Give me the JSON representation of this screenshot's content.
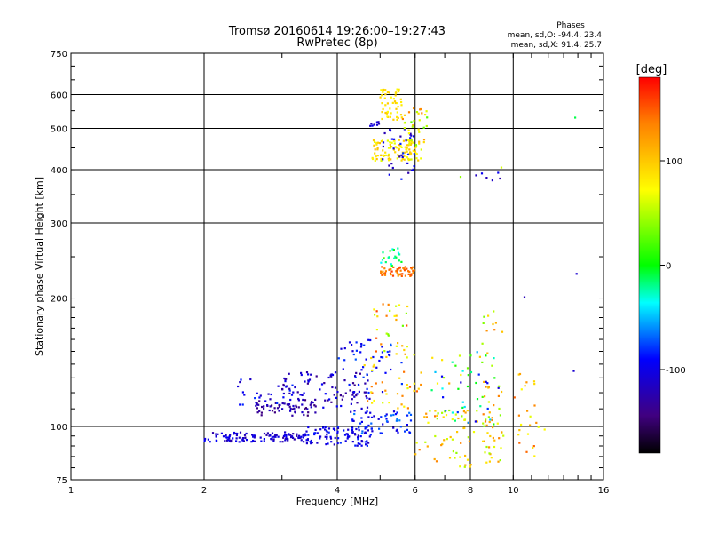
{
  "chart_data": {
    "type": "scatter",
    "title": "Tromsø 20160614 19:26:00–19:27:43",
    "subtitle": "RwPretec (8p)",
    "xlabel": "Frequency [MHz]",
    "ylabel": "Stationary phase Virtual Height [km]",
    "x_scale": "log2",
    "y_scale": "log",
    "xlim": [
      1,
      16
    ],
    "ylim": [
      75,
      750
    ],
    "x_ticks": [
      1,
      2,
      4,
      6,
      8,
      10,
      16
    ],
    "y_ticks": [
      75,
      100,
      200,
      300,
      400,
      500,
      600,
      750
    ],
    "grid": true,
    "stats": {
      "heading": "Phases",
      "o_line": "mean, sd,O: -94.4, 23.4",
      "x_line": "mean, sd,X:  91.4, 25.7"
    },
    "colorbar": {
      "label": "[deg]",
      "range": [
        -180,
        180
      ],
      "ticks": [
        100,
        0,
        -100
      ],
      "tick_labels": [
        "100",
        "0",
        "-100"
      ]
    },
    "clusters": [
      {
        "x_range": [
          2.0,
          3.4
        ],
        "y_range": [
          92,
          97
        ],
        "phase_range": [
          -130,
          -90
        ],
        "count": 120
      },
      {
        "x_range": [
          3.4,
          4.8
        ],
        "y_range": [
          90,
          100
        ],
        "phase_range": [
          -120,
          -80
        ],
        "count": 90
      },
      {
        "x_range": [
          4.2,
          6.0
        ],
        "y_range": [
          96,
          110
        ],
        "phase_range": [
          -110,
          -60
        ],
        "count": 60
      },
      {
        "x_range": [
          2.6,
          3.6
        ],
        "y_range": [
          106,
          116
        ],
        "phase_range": [
          -150,
          -110
        ],
        "count": 60
      },
      {
        "x_range": [
          3.0,
          4.8
        ],
        "y_range": [
          110,
          135
        ],
        "phase_range": [
          -140,
          -90
        ],
        "count": 90
      },
      {
        "x_range": [
          2.3,
          3.2
        ],
        "y_range": [
          112,
          130
        ],
        "phase_range": [
          -120,
          -80
        ],
        "count": 25
      },
      {
        "x_range": [
          4.0,
          5.6
        ],
        "y_range": [
          120,
          160
        ],
        "phase_range": [
          -110,
          -70
        ],
        "count": 50
      },
      {
        "x_range": [
          4.6,
          6.2
        ],
        "y_range": [
          110,
          150
        ],
        "phase_range": [
          60,
          150
        ],
        "count": 40
      },
      {
        "x_range": [
          4.8,
          5.8
        ],
        "y_range": [
          150,
          195
        ],
        "phase_range": [
          30,
          160
        ],
        "count": 30
      },
      {
        "x_range": [
          5.0,
          6.0
        ],
        "y_range": [
          225,
          237
        ],
        "phase_range": [
          120,
          160
        ],
        "count": 60
      },
      {
        "x_range": [
          5.0,
          5.6
        ],
        "y_range": [
          238,
          262
        ],
        "phase_range": [
          -40,
          20
        ],
        "count": 20
      },
      {
        "x_range": [
          4.8,
          6.2
        ],
        "y_range": [
          420,
          470
        ],
        "phase_range": [
          60,
          110
        ],
        "count": 110
      },
      {
        "x_range": [
          5.0,
          5.6
        ],
        "y_range": [
          520,
          620
        ],
        "phase_range": [
          70,
          100
        ],
        "count": 50
      },
      {
        "x_range": [
          5.0,
          6.0
        ],
        "y_range": [
          380,
          500
        ],
        "phase_range": [
          -130,
          -80
        ],
        "count": 35
      },
      {
        "x_range": [
          4.6,
          5.0
        ],
        "y_range": [
          500,
          520
        ],
        "phase_range": [
          -120,
          -90
        ],
        "count": 8
      },
      {
        "x_range": [
          5.6,
          6.4
        ],
        "y_range": [
          450,
          560
        ],
        "phase_range": [
          20,
          140
        ],
        "count": 30
      },
      {
        "x_range": [
          6.0,
          9.0
        ],
        "y_range": [
          80,
          110
        ],
        "phase_range": [
          40,
          140
        ],
        "count": 70
      },
      {
        "x_range": [
          6.5,
          9.5
        ],
        "y_range": [
          100,
          150
        ],
        "phase_range": [
          -110,
          120
        ],
        "count": 60
      },
      {
        "x_range": [
          8.5,
          9.5
        ],
        "y_range": [
          80,
          190
        ],
        "phase_range": [
          30,
          140
        ],
        "count": 40
      },
      {
        "x_range": [
          10.0,
          12.0
        ],
        "y_range": [
          85,
          135
        ],
        "phase_range": [
          60,
          150
        ],
        "count": 25
      },
      {
        "x_range": [
          8.2,
          9.4
        ],
        "y_range": [
          370,
          400
        ],
        "phase_range": [
          -130,
          -90
        ],
        "count": 6
      }
    ],
    "outliers": [
      {
        "x": 13.8,
        "y": 530,
        "phase": -10
      },
      {
        "x": 13.9,
        "y": 228,
        "phase": -110
      },
      {
        "x": 13.7,
        "y": 135,
        "phase": -110
      },
      {
        "x": 10.6,
        "y": 201,
        "phase": -120
      },
      {
        "x": 7.6,
        "y": 385,
        "phase": 40
      },
      {
        "x": 9.4,
        "y": 405,
        "phase": 60
      }
    ]
  }
}
